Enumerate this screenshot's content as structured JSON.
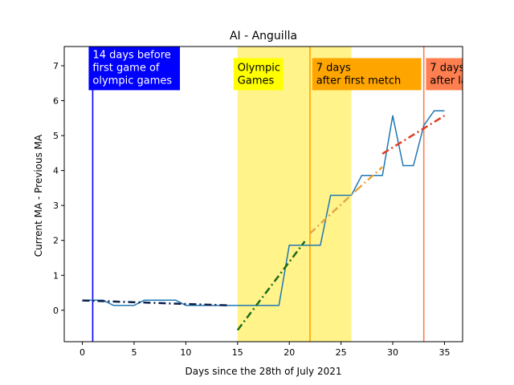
{
  "chart_data": {
    "type": "line",
    "title": "AI - Anguilla",
    "xlabel": "Days since the 28th of July 2021",
    "ylabel": "Current MA - Previous MA",
    "xlim": [
      -1.75,
      36.75
    ],
    "ylim": [
      -0.9,
      7.55
    ],
    "xticks": [
      0,
      5,
      10,
      15,
      20,
      25,
      30,
      35
    ],
    "yticks": [
      0,
      1,
      2,
      3,
      4,
      5,
      6,
      7
    ],
    "grid": false,
    "series": [
      {
        "style": "solid",
        "color": "#1f77b4",
        "x": [
          0,
          1,
          2,
          3,
          4,
          5,
          6,
          7,
          8,
          9,
          10,
          11,
          12,
          13,
          14,
          15,
          16,
          17,
          18,
          19,
          20,
          21,
          22,
          23,
          24,
          25,
          26,
          27,
          28,
          29,
          30,
          31,
          32,
          33,
          34,
          35
        ],
        "y": [
          0.29,
          0.29,
          0.29,
          0.14,
          0.14,
          0.14,
          0.29,
          0.29,
          0.29,
          0.29,
          0.14,
          0.14,
          0.14,
          0.14,
          0.14,
          0.14,
          0.14,
          0.14,
          0.14,
          0.14,
          1.86,
          1.86,
          1.86,
          1.86,
          3.29,
          3.29,
          3.29,
          3.86,
          3.86,
          3.86,
          5.57,
          4.14,
          4.14,
          5.29,
          5.71,
          5.71
        ]
      },
      {
        "style": "dashdot",
        "color": "#0b1f4d",
        "x": [
          0,
          14
        ],
        "y": [
          0.28,
          0.14
        ]
      },
      {
        "style": "dashdot",
        "color": "#1a6b1a",
        "x": [
          15,
          21.5
        ],
        "y": [
          -0.57,
          1.97
        ]
      },
      {
        "style": "dashdot",
        "color": "#e0a64a",
        "x": [
          22,
          26.5
        ],
        "y": [
          2.2,
          3.44
        ]
      },
      {
        "style": "dashdot",
        "color": "#e8a23a",
        "x": [
          26.5,
          29
        ],
        "y": [
          3.44,
          4.1
        ]
      },
      {
        "style": "dashdot",
        "color": "#e03c1e",
        "x": [
          29,
          35
        ],
        "y": [
          4.48,
          5.57
        ]
      }
    ],
    "vlines": [
      {
        "x": 1,
        "color": "#0000ff"
      },
      {
        "x": 22,
        "color": "#ffa500"
      },
      {
        "x": 33,
        "color": "#ff7f50"
      }
    ],
    "spans": [
      {
        "from": 15,
        "to": 26,
        "color": "#fff176"
      }
    ],
    "annotations": [
      {
        "lines": [
          "14 days before",
          "first game of",
          "olympic games"
        ],
        "x": 1,
        "anchor_y": 6.3,
        "bg": "#0000ff",
        "fg": "#ffffff"
      },
      {
        "lines": [
          "Olympic",
          "Games"
        ],
        "x": 15,
        "anchor_y": 6.3,
        "bg": "#ffff00",
        "fg": "#000000"
      },
      {
        "lines": [
          "7 days",
          "after first metch"
        ],
        "x": 22.6,
        "anchor_y": 6.3,
        "bg": "#ffa500",
        "fg": "#000000"
      },
      {
        "lines": [
          "7 days",
          "after last match"
        ],
        "x": 33.6,
        "anchor_y": 6.3,
        "bg": "#ff7f50",
        "fg": "#000000"
      }
    ]
  }
}
